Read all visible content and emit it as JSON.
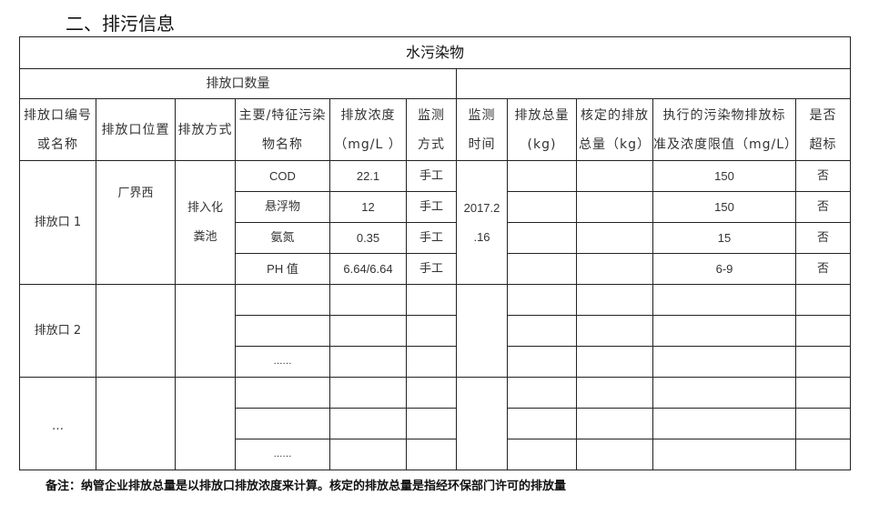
{
  "section_title": "二、排污信息",
  "table": {
    "title": "水污染物",
    "subtitle": "排放口数量",
    "headers": [
      [
        "排放口编号",
        "或名称"
      ],
      [
        "排放口位置"
      ],
      [
        "排放方式"
      ],
      [
        "主要/特征污染",
        "物名称"
      ],
      [
        "排放浓度",
        "（mg/L  ）"
      ],
      [
        "监测",
        "方式"
      ],
      [
        "监测",
        "时间"
      ],
      [
        "排放总量",
        "(kg)"
      ],
      [
        "核定的排放",
        "总量（kg）"
      ],
      [
        "执行的污染物排放标",
        "准及浓度限值（mg/L）"
      ],
      [
        "是否",
        "超标"
      ]
    ],
    "outlet1": {
      "name": "排放口 1",
      "location": "厂界西",
      "method": [
        "排入化",
        "粪池"
      ],
      "time": [
        "2017.2",
        ".16"
      ],
      "rows": [
        {
          "pollutant": "COD",
          "concentration": "22.1",
          "monitor": "手工",
          "limit": "150",
          "exceed": "否"
        },
        {
          "pollutant": "悬浮物",
          "concentration": "12",
          "monitor": "手工",
          "limit": "150",
          "exceed": "否"
        },
        {
          "pollutant": "氨氮",
          "concentration": "0.35",
          "monitor": "手工",
          "limit": "15",
          "exceed": "否"
        },
        {
          "pollutant": "PH 值",
          "concentration": "6.64/6.64",
          "monitor": "手工",
          "limit": "6-9",
          "exceed": "否"
        }
      ]
    },
    "outlet2": {
      "name": "排放口 2",
      "more": "……"
    },
    "outlet3": {
      "name": "…",
      "more": "……"
    }
  },
  "note": {
    "label": "备注：",
    "text": "纳管企业排放总量是以排放口排放浓度来计算。核定的排放总量是指经环保部门许可的排放量"
  }
}
